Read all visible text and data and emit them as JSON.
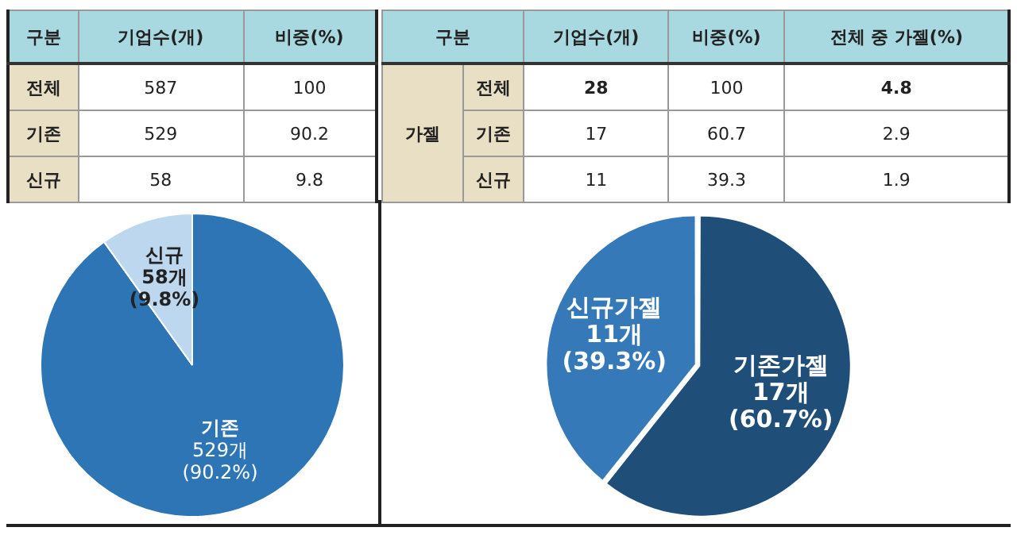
{
  "chart_data": [
    {
      "type": "other",
      "annotations": [
        "구분",
        "기업수(개)",
        "비중(%)",
        "전체",
        "587",
        "100",
        "기존",
        "529",
        "90.2",
        "신규",
        "58",
        "9.8"
      ]
    },
    {
      "type": "other",
      "annotations": [
        "구분",
        "기업수(개)",
        "비중(%)",
        "전체 중 가젤(%)",
        "가젤",
        "전체",
        "28",
        "100",
        "4.8",
        "기존",
        "17",
        "60.7",
        "2.9",
        "신규",
        "11",
        "39.3",
        "1.9"
      ]
    },
    {
      "type": "pie",
      "categories": [
        "기존",
        "신규"
      ],
      "values": [
        529,
        58
      ],
      "colors": [
        "#2e75b6",
        "#bdd7ee"
      ],
      "value_labels": [
        "529개\n(90.2%)",
        "58개\n(9.8%)"
      ]
    },
    {
      "type": "pie",
      "categories": [
        "기존가젤",
        "신규가젤"
      ],
      "values": [
        17,
        11
      ],
      "colors": [
        "#1f4e79",
        "#3579b8"
      ],
      "value_labels": [
        "17개\n(60.7%)",
        "11개\n(39.3%)"
      ]
    }
  ]
}
